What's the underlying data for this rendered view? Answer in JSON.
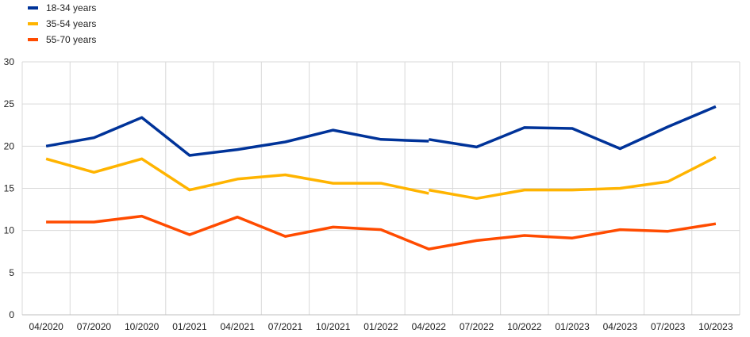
{
  "chart_data": {
    "type": "line",
    "title": "",
    "xlabel": "",
    "ylabel": "",
    "categories": [
      "04/2020",
      "07/2020",
      "10/2020",
      "01/2021",
      "04/2021",
      "07/2021",
      "10/2021",
      "01/2022",
      "04/2022",
      "07/2022",
      "10/2022",
      "01/2023",
      "04/2023",
      "07/2023",
      "10/2023"
    ],
    "ylim": [
      0,
      30
    ],
    "yticks": [
      0,
      5,
      10,
      15,
      20,
      25,
      30
    ],
    "grid": true,
    "legend_position": "top-left",
    "series": [
      {
        "name": "18-34 years",
        "color": "#003399",
        "values": [
          20.0,
          21.0,
          23.4,
          18.9,
          19.6,
          20.5,
          21.9,
          20.8,
          20.7,
          19.9,
          22.2,
          22.1,
          19.7,
          22.3,
          24.7
        ],
        "breaks": [
          {
            "index": 8,
            "before": 20.6,
            "after": 20.8
          }
        ]
      },
      {
        "name": "35-54 years",
        "color": "#FFB400",
        "values": [
          18.5,
          16.9,
          18.5,
          14.8,
          16.1,
          16.6,
          15.6,
          15.6,
          14.4,
          13.8,
          14.8,
          14.8,
          15.0,
          15.8,
          18.7
        ],
        "breaks": [
          {
            "index": 8,
            "before": 14.4,
            "after": 14.8
          }
        ]
      },
      {
        "name": "55-70 years",
        "color": "#FF4B00",
        "values": [
          11.0,
          11.0,
          11.7,
          9.5,
          11.6,
          9.3,
          10.4,
          10.1,
          7.8,
          8.8,
          9.4,
          9.1,
          10.1,
          9.9,
          10.8
        ],
        "breaks": []
      }
    ]
  }
}
